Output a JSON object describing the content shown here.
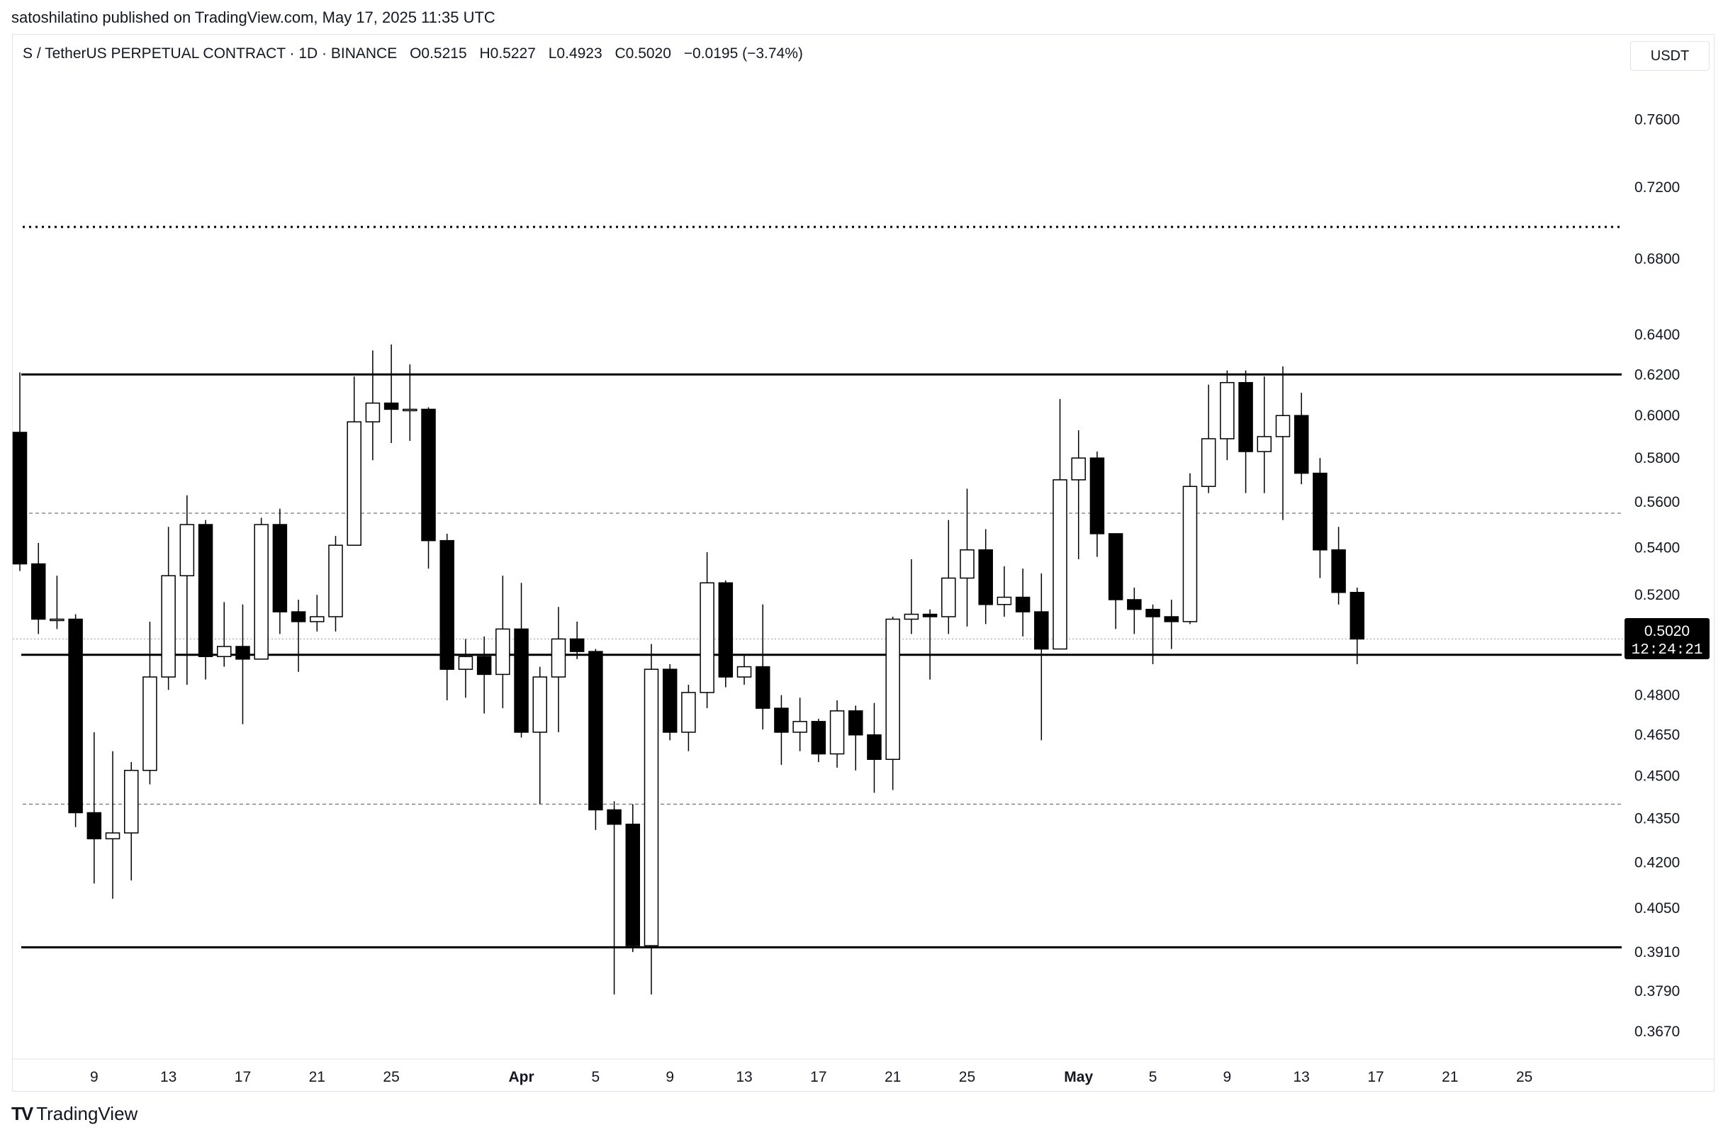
{
  "publisher_line": "satoshilatino published on TradingView.com, May 17, 2025 11:35 UTC",
  "header": {
    "symbol": "S / TetherUS PERPETUAL CONTRACT · 1D · BINANCE",
    "open": "O0.5215",
    "high": "H0.5227",
    "low": "L0.4923",
    "close": "C0.5020",
    "change": "−0.0195 (−3.74%)",
    "currency": "USDT"
  },
  "brand": {
    "name": "TradingView",
    "logo": "TV"
  },
  "colors": {
    "up_body": "#ffffff",
    "down_body": "#000000",
    "wick": "#000000",
    "grid_text": "#131722"
  },
  "price_label": {
    "price": "0.5020",
    "countdown": "12:24:21"
  },
  "chart_data": {
    "type": "candlestick",
    "x_labels": [
      "9",
      "13",
      "17",
      "21",
      "25",
      "Apr",
      "5",
      "9",
      "13",
      "17",
      "21",
      "25",
      "May",
      "5",
      "9",
      "13",
      "17",
      "21",
      "25"
    ],
    "y_ticks": [
      "0.7600",
      "0.7200",
      "0.6800",
      "0.6400",
      "0.6200",
      "0.6000",
      "0.5800",
      "0.5600",
      "0.5400",
      "0.5200",
      "0.4800",
      "0.4650",
      "0.4500",
      "0.4350",
      "0.4200",
      "0.4050",
      "0.3910",
      "0.3790",
      "0.3670"
    ],
    "y_scale": "log",
    "ylim": [
      0.359,
      0.79
    ],
    "first_date": "2025-03-05",
    "last_date": "2025-05-17",
    "candles": [
      [
        0.592,
        0.621,
        0.53,
        0.533
      ],
      [
        0.533,
        0.542,
        0.504,
        0.51
      ],
      [
        0.51,
        0.528,
        0.506,
        0.51
      ],
      [
        0.51,
        0.512,
        0.432,
        0.437
      ],
      [
        0.437,
        0.466,
        0.413,
        0.428
      ],
      [
        0.428,
        0.459,
        0.408,
        0.43
      ],
      [
        0.43,
        0.455,
        0.414,
        0.452
      ],
      [
        0.452,
        0.509,
        0.447,
        0.487
      ],
      [
        0.487,
        0.549,
        0.482,
        0.528
      ],
      [
        0.528,
        0.563,
        0.484,
        0.55
      ],
      [
        0.55,
        0.552,
        0.486,
        0.495
      ],
      [
        0.495,
        0.517,
        0.491,
        0.499
      ],
      [
        0.499,
        0.516,
        0.469,
        0.494
      ],
      [
        0.494,
        0.553,
        0.494,
        0.55
      ],
      [
        0.55,
        0.557,
        0.504,
        0.513
      ],
      [
        0.513,
        0.518,
        0.489,
        0.509
      ],
      [
        0.509,
        0.52,
        0.505,
        0.511
      ],
      [
        0.511,
        0.545,
        0.505,
        0.541
      ],
      [
        0.541,
        0.619,
        0.541,
        0.597
      ],
      [
        0.597,
        0.632,
        0.579,
        0.606
      ],
      [
        0.606,
        0.635,
        0.587,
        0.603
      ],
      [
        0.603,
        0.625,
        0.588,
        0.603
      ],
      [
        0.603,
        0.604,
        0.531,
        0.543
      ],
      [
        0.543,
        0.546,
        0.478,
        0.49
      ],
      [
        0.49,
        0.502,
        0.479,
        0.495
      ],
      [
        0.495,
        0.503,
        0.473,
        0.488
      ],
      [
        0.488,
        0.528,
        0.475,
        0.506
      ],
      [
        0.506,
        0.525,
        0.464,
        0.466
      ],
      [
        0.466,
        0.491,
        0.44,
        0.487
      ],
      [
        0.487,
        0.515,
        0.466,
        0.502
      ],
      [
        0.502,
        0.509,
        0.494,
        0.497
      ],
      [
        0.497,
        0.498,
        0.431,
        0.438
      ],
      [
        0.438,
        0.441,
        0.378,
        0.433
      ],
      [
        0.433,
        0.44,
        0.391,
        0.393
      ],
      [
        0.393,
        0.5,
        0.378,
        0.49
      ],
      [
        0.49,
        0.492,
        0.463,
        0.466
      ],
      [
        0.466,
        0.484,
        0.459,
        0.481
      ],
      [
        0.481,
        0.538,
        0.475,
        0.525
      ],
      [
        0.525,
        0.526,
        0.483,
        0.487
      ],
      [
        0.487,
        0.496,
        0.484,
        0.491
      ],
      [
        0.491,
        0.516,
        0.467,
        0.475
      ],
      [
        0.475,
        0.48,
        0.454,
        0.466
      ],
      [
        0.466,
        0.479,
        0.459,
        0.47
      ],
      [
        0.47,
        0.471,
        0.455,
        0.458
      ],
      [
        0.458,
        0.478,
        0.453,
        0.474
      ],
      [
        0.474,
        0.476,
        0.452,
        0.465
      ],
      [
        0.465,
        0.477,
        0.444,
        0.456
      ],
      [
        0.456,
        0.511,
        0.445,
        0.51
      ],
      [
        0.51,
        0.535,
        0.504,
        0.512
      ],
      [
        0.512,
        0.514,
        0.486,
        0.511
      ],
      [
        0.511,
        0.552,
        0.504,
        0.527
      ],
      [
        0.527,
        0.566,
        0.507,
        0.539
      ],
      [
        0.539,
        0.548,
        0.508,
        0.516
      ],
      [
        0.516,
        0.532,
        0.511,
        0.519
      ],
      [
        0.519,
        0.531,
        0.503,
        0.513
      ],
      [
        0.513,
        0.529,
        0.463,
        0.498
      ],
      [
        0.498,
        0.608,
        0.498,
        0.57
      ],
      [
        0.57,
        0.593,
        0.535,
        0.58
      ],
      [
        0.58,
        0.583,
        0.536,
        0.546
      ],
      [
        0.546,
        0.546,
        0.506,
        0.518
      ],
      [
        0.518,
        0.523,
        0.504,
        0.514
      ],
      [
        0.514,
        0.516,
        0.492,
        0.511
      ],
      [
        0.511,
        0.518,
        0.498,
        0.509
      ],
      [
        0.509,
        0.573,
        0.508,
        0.567
      ],
      [
        0.567,
        0.615,
        0.564,
        0.589
      ],
      [
        0.589,
        0.622,
        0.579,
        0.616
      ],
      [
        0.616,
        0.622,
        0.564,
        0.583
      ],
      [
        0.583,
        0.619,
        0.564,
        0.59
      ],
      [
        0.59,
        0.624,
        0.552,
        0.6
      ],
      [
        0.6,
        0.611,
        0.568,
        0.573
      ],
      [
        0.573,
        0.58,
        0.527,
        0.539
      ],
      [
        0.539,
        0.549,
        0.516,
        0.521
      ],
      [
        0.521,
        0.523,
        0.492,
        0.502
      ]
    ],
    "horizontal_lines": [
      {
        "price": 0.6975,
        "style": "dotted",
        "weight": "heavy"
      },
      {
        "price": 0.62,
        "style": "solid"
      },
      {
        "price": 0.555,
        "style": "dashed"
      },
      {
        "price": 0.4957,
        "style": "solid"
      },
      {
        "price": 0.44,
        "style": "dashed"
      },
      {
        "price": 0.3925,
        "style": "solid"
      }
    ]
  }
}
